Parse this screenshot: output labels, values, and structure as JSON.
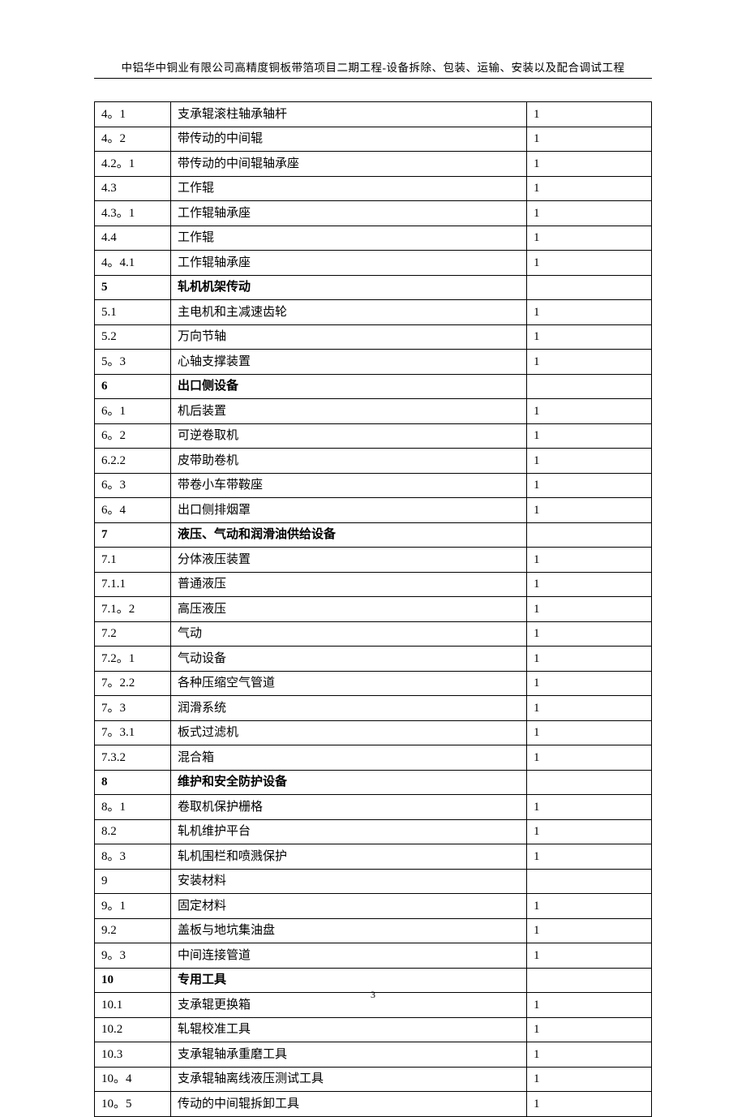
{
  "header": {
    "title": "中铝华中铜业有限公司高精度铜板带箔项目二期工程-设备拆除、包装、运输、安装以及配合调试工程"
  },
  "page_number": "3",
  "table": {
    "background_color": "#ffffff",
    "border_color": "#000000",
    "text_color": "#000000",
    "font_size": 15,
    "rows": [
      {
        "c1": "4。1",
        "c2": "支承辊滚柱轴承轴杆",
        "c3": "1",
        "bold": false
      },
      {
        "c1": "4。2",
        "c2": "带传动的中间辊",
        "c3": "1",
        "bold": false
      },
      {
        "c1": "4.2。1",
        "c2": "带传动的中间辊轴承座",
        "c3": "1",
        "bold": false
      },
      {
        "c1": "4.3",
        "c2": "工作辊",
        "c3": "1",
        "bold": false
      },
      {
        "c1": "4.3。1",
        "c2": "工作辊轴承座",
        "c3": "1",
        "bold": false
      },
      {
        "c1": "4.4",
        "c2": "工作辊",
        "c3": "1",
        "bold": false
      },
      {
        "c1": "4。4.1",
        "c2": "工作辊轴承座",
        "c3": "1",
        "bold": false
      },
      {
        "c1": "5",
        "c2": "轧机机架传动",
        "c3": "",
        "bold": true
      },
      {
        "c1": "5.1",
        "c2": "主电机和主减速齿轮",
        "c3": "1",
        "bold": false
      },
      {
        "c1": "5.2",
        "c2": "万向节轴",
        "c3": "1",
        "bold": false
      },
      {
        "c1": "5。3",
        "c2": "心轴支撑装置",
        "c3": "1",
        "bold": false
      },
      {
        "c1": "6",
        "c2": "出口侧设备",
        "c3": "",
        "bold": true
      },
      {
        "c1": "6。1",
        "c2": "机后装置",
        "c3": "1",
        "bold": false
      },
      {
        "c1": "6。2",
        "c2": "可逆卷取机",
        "c3": "1",
        "bold": false
      },
      {
        "c1": "6.2.2",
        "c2": "皮带助卷机",
        "c3": "1",
        "bold": false
      },
      {
        "c1": "6。3",
        "c2": "带卷小车带鞍座",
        "c3": "1",
        "bold": false
      },
      {
        "c1": "6。4",
        "c2": "出口侧排烟罩",
        "c3": "1",
        "bold": false
      },
      {
        "c1": "7",
        "c2": "液压、气动和润滑油供给设备",
        "c3": "",
        "bold": true
      },
      {
        "c1": "7.1",
        "c2": "分体液压装置",
        "c3": "1",
        "bold": false
      },
      {
        "c1": "7.1.1",
        "c2": "普通液压",
        "c3": "1",
        "bold": false
      },
      {
        "c1": "7.1。2",
        "c2": "高压液压",
        "c3": "1",
        "bold": false
      },
      {
        "c1": "7.2",
        "c2": "气动",
        "c3": "1",
        "bold": false
      },
      {
        "c1": "7.2。1",
        "c2": "气动设备",
        "c3": "1",
        "bold": false
      },
      {
        "c1": "7。2.2",
        "c2": "各种压缩空气管道",
        "c3": "1",
        "bold": false
      },
      {
        "c1": "7。3",
        "c2": "润滑系统",
        "c3": "1",
        "bold": false
      },
      {
        "c1": "7。3.1",
        "c2": "板式过滤机",
        "c3": "1",
        "bold": false
      },
      {
        "c1": "7.3.2",
        "c2": "混合箱",
        "c3": "1",
        "bold": false
      },
      {
        "c1": "8",
        "c2": "维护和安全防护设备",
        "c3": "",
        "bold": true
      },
      {
        "c1": "8。1",
        "c2": "卷取机保护栅格",
        "c3": "1",
        "bold": false
      },
      {
        "c1": "8.2",
        "c2": "轧机维护平台",
        "c3": "1",
        "bold": false
      },
      {
        "c1": "8。3",
        "c2": "轧机围栏和喷溅保护",
        "c3": "1",
        "bold": false
      },
      {
        "c1": "9",
        "c2": "安装材料",
        "c3": "",
        "bold": false
      },
      {
        "c1": "9。1",
        "c2": "固定材料",
        "c3": "1",
        "bold": false
      },
      {
        "c1": "9.2",
        "c2": "盖板与地坑集油盘",
        "c3": "1",
        "bold": false
      },
      {
        "c1": "9。3",
        "c2": "中间连接管道",
        "c3": "1",
        "bold": false
      },
      {
        "c1": "10",
        "c2": "专用工具",
        "c3": "",
        "bold": true
      },
      {
        "c1": "10.1",
        "c2": "支承辊更换箱",
        "c3": "1",
        "bold": false
      },
      {
        "c1": "10.2",
        "c2": "轧辊校准工具",
        "c3": "1",
        "bold": false
      },
      {
        "c1": "10.3",
        "c2": "支承辊轴承重磨工具",
        "c3": "1",
        "bold": false
      },
      {
        "c1": "10。4",
        "c2": "支承辊轴离线液压测试工具",
        "c3": "1",
        "bold": false
      },
      {
        "c1": "10。5",
        "c2": "传动的中间辊拆卸工具",
        "c3": "1",
        "bold": false
      }
    ]
  }
}
